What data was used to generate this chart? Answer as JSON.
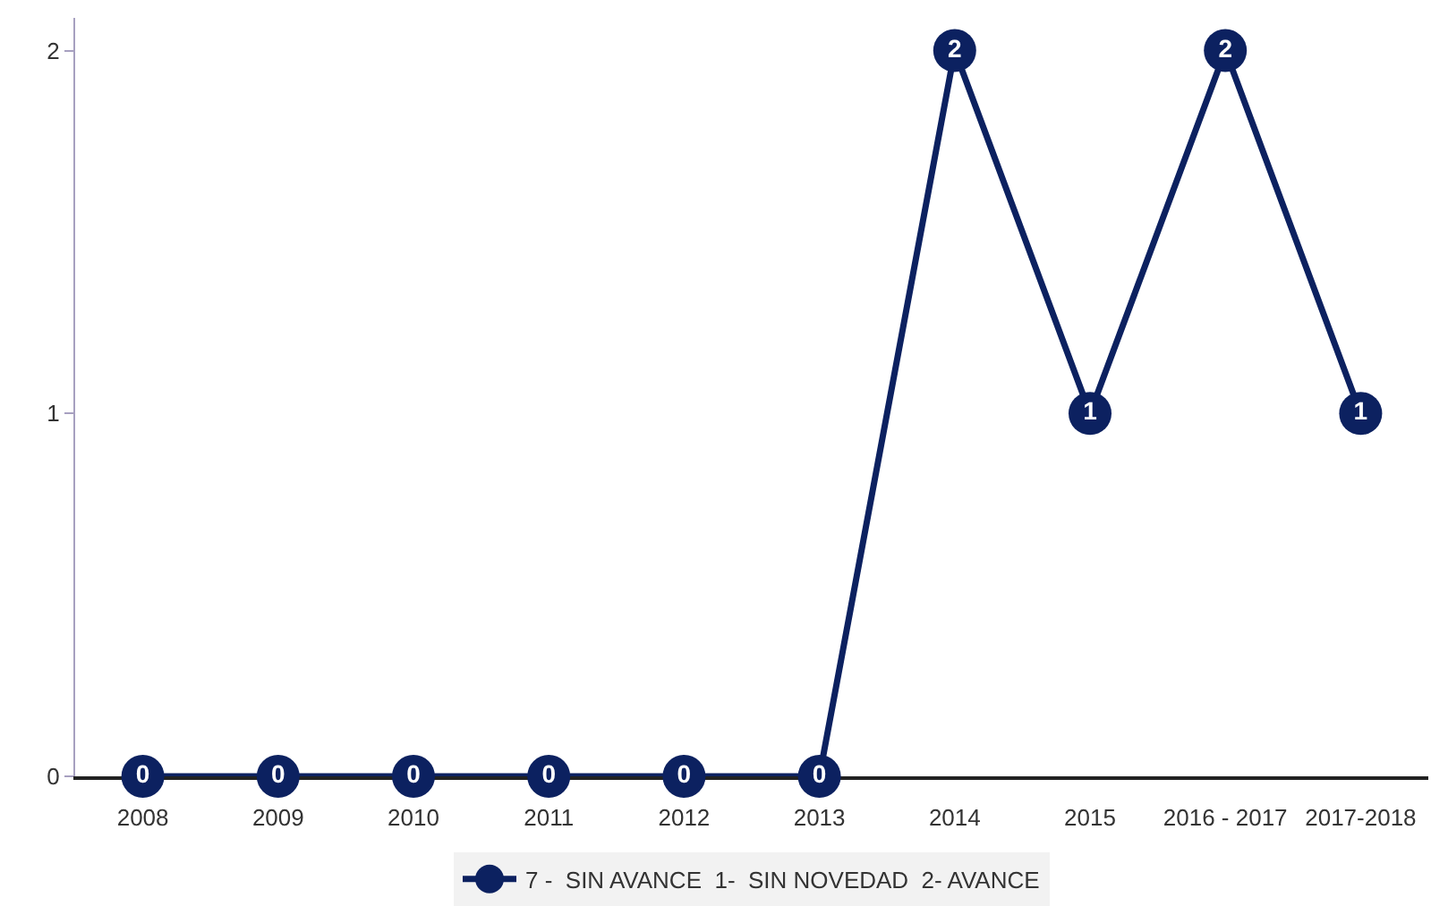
{
  "chart_data": {
    "type": "line",
    "categories": [
      "2008",
      "2009",
      "2010",
      "2011",
      "2012",
      "2013",
      "2014",
      "2015",
      "2016 - 2017",
      "2017-2018"
    ],
    "series": [
      {
        "name": "7 -  SIN AVANCE  1-  SIN NOVEDAD  2- AVANCE",
        "color": "#0c2160",
        "values": [
          0,
          0,
          0,
          0,
          0,
          0,
          2,
          1,
          2,
          1
        ]
      }
    ],
    "ylim": [
      0,
      2.09
    ],
    "yticks": [
      0,
      1,
      2
    ],
    "legend": "bottom",
    "marker": "circle",
    "line_style": "solid",
    "data_labels": true
  }
}
